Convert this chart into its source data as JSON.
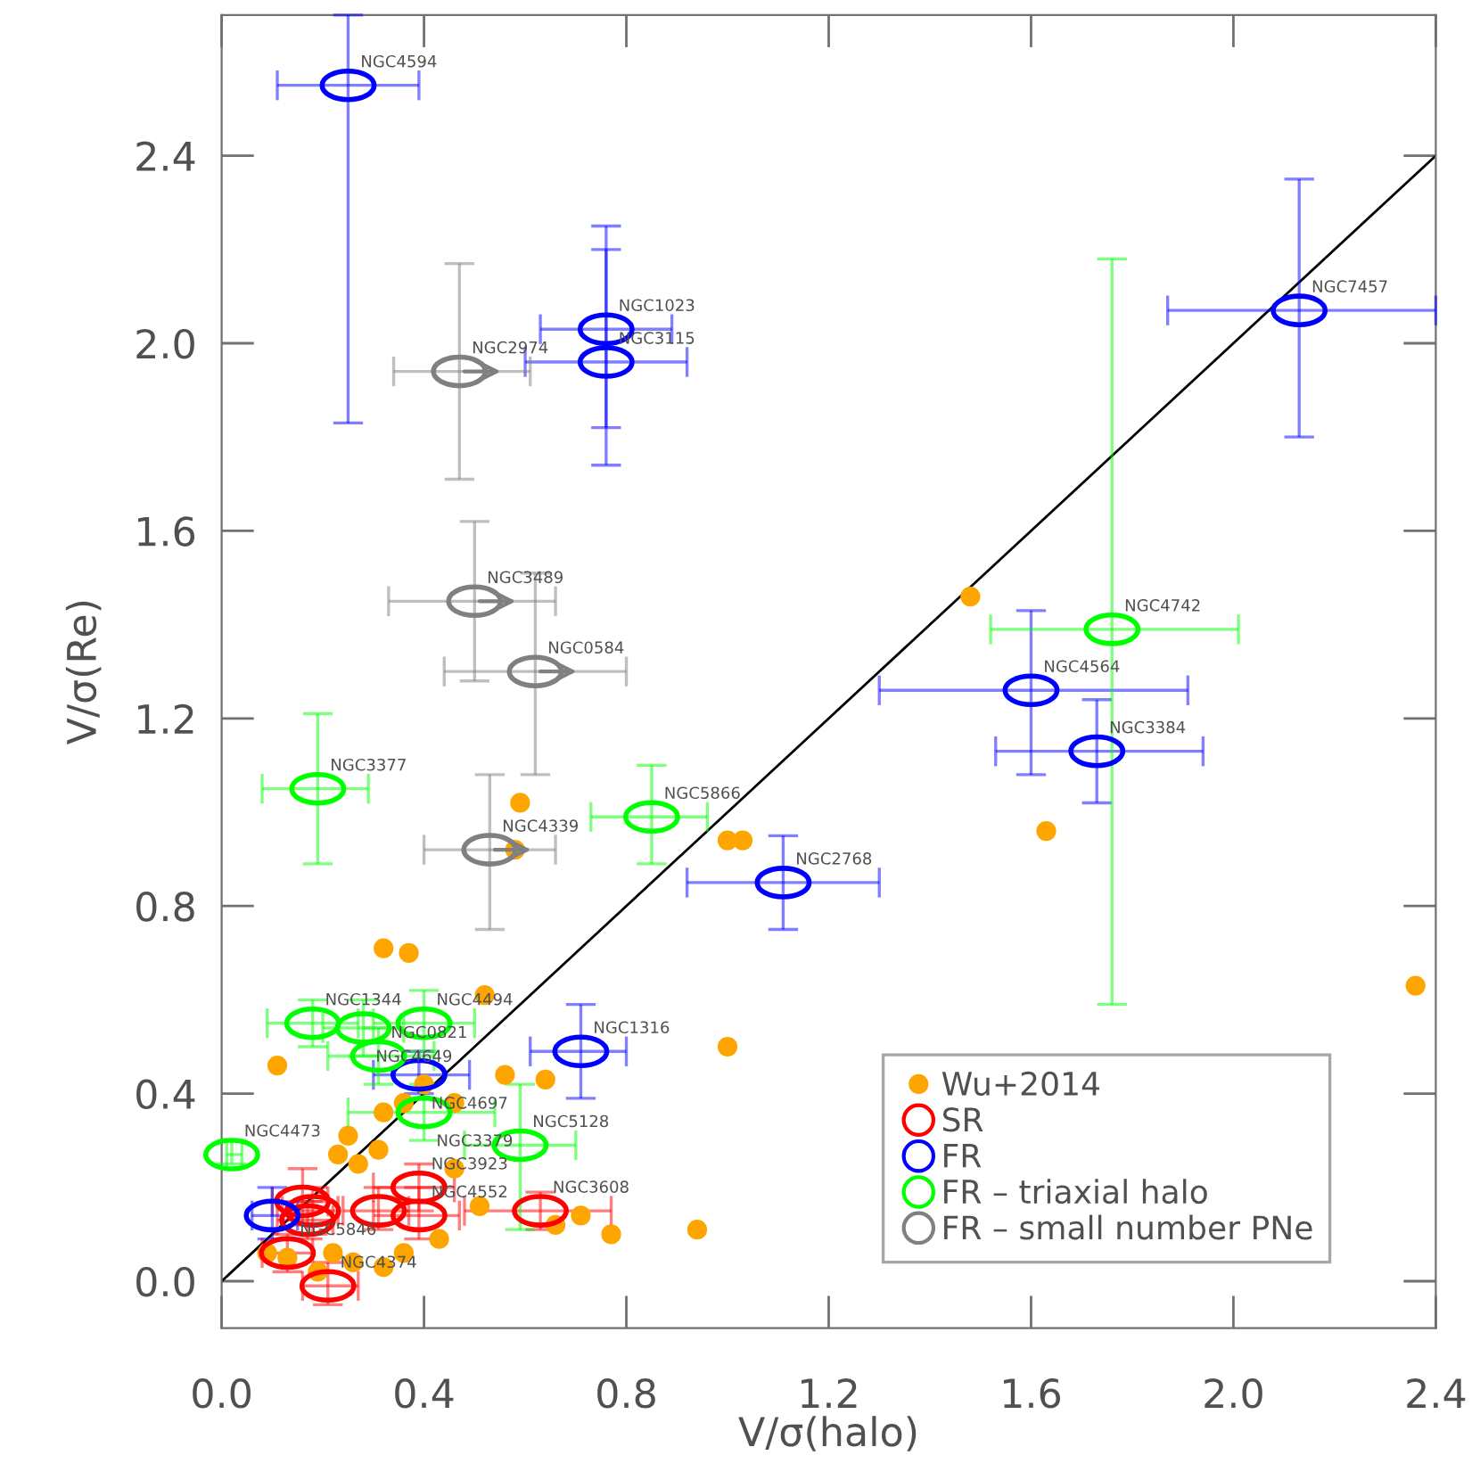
{
  "chart_data": {
    "type": "scatter",
    "xlabel": "V/σ(halo)",
    "ylabel": "V/σ(Re)",
    "xlim": [
      0,
      2.4
    ],
    "ylim": [
      -0.1,
      2.7
    ],
    "xticks": [
      {
        "value": 0,
        "label": "0.0"
      },
      0.4,
      0.8,
      1.2,
      1.6,
      {
        "value": 2,
        "label": "2.0"
      },
      2.4
    ],
    "yticks": [
      {
        "value": 0,
        "label": "0.0"
      },
      0.4,
      0.8,
      1.2,
      1.6,
      {
        "value": 2,
        "label": "2.0"
      },
      2.4
    ],
    "grid": false,
    "legend": "bottom right",
    "series": [
      {
        "name": "Wu+2014",
        "color": "#ffa500",
        "marker": "circle",
        "x": [
          1.48,
          1.63,
          2.36,
          1.0,
          1.03,
          0.59,
          0.58,
          0.32,
          0.37,
          0.52,
          1.0,
          0.11,
          0.56,
          0.64,
          0.4,
          0.36,
          0.32,
          0.46,
          0.25,
          0.23,
          0.31,
          0.27,
          0.46,
          0.51,
          0.43,
          0.36,
          0.32,
          0.26,
          0.22,
          0.19,
          0.09,
          0.13,
          0.66,
          0.71,
          0.77,
          0.94
        ],
        "values": [
          1.46,
          0.96,
          0.63,
          0.94,
          0.94,
          1.02,
          0.92,
          0.71,
          0.7,
          0.61,
          0.5,
          0.46,
          0.44,
          0.43,
          0.42,
          0.38,
          0.36,
          0.38,
          0.31,
          0.27,
          0.28,
          0.25,
          0.24,
          0.16,
          0.09,
          0.06,
          0.03,
          0.04,
          0.06,
          0.02,
          0.06,
          0.05,
          0.12,
          0.14,
          0.1,
          0.11
        ]
      },
      {
        "name": "SR",
        "color": "#ff0000",
        "marker": "circle",
        "x": [
          0.21,
          0.13,
          0.63,
          0.39,
          0.39,
          0.31,
          0.16,
          0.17,
          0.18
        ],
        "values": [
          -0.01,
          0.06,
          0.15,
          0.2,
          0.14,
          0.15,
          0.17,
          0.13,
          0.15
        ],
        "xerrors": [
          [
            0.16,
            0.27
          ],
          [
            0.08,
            0.18
          ],
          [
            0.48,
            0.77
          ],
          [
            0.3,
            0.46
          ],
          [
            0.3,
            0.47
          ],
          [
            0.24,
            0.37
          ],
          [
            0.1,
            0.21
          ],
          [
            0.11,
            0.22
          ],
          [
            0.12,
            0.23
          ]
        ],
        "errors": [
          [
            -0.05,
            0.04
          ],
          [
            0.02,
            0.1
          ],
          [
            0.11,
            0.19
          ],
          [
            0.15,
            0.25
          ],
          [
            0.09,
            0.2
          ],
          [
            0.11,
            0.2
          ],
          [
            0.12,
            0.24
          ],
          [
            0.09,
            0.17
          ],
          [
            0.1,
            0.2
          ]
        ]
      },
      {
        "name": "FR",
        "color": "#0000ff",
        "marker": "circle",
        "x": [
          0.25,
          0.76,
          0.76,
          2.13,
          1.6,
          1.73,
          1.11,
          0.71,
          0.39,
          0.1
        ],
        "values": [
          2.55,
          2.03,
          1.96,
          2.07,
          1.26,
          1.13,
          0.85,
          0.49,
          0.44,
          0.14
        ],
        "xerrors": [
          [
            0.11,
            0.39
          ],
          [
            0.63,
            0.89
          ],
          [
            0.6,
            0.92
          ],
          [
            1.87,
            2.4
          ],
          [
            1.3,
            1.91
          ],
          [
            1.53,
            1.94
          ],
          [
            0.92,
            1.3
          ],
          [
            0.61,
            0.8
          ],
          [
            0.3,
            0.49
          ],
          [
            0.06,
            0.15
          ]
        ],
        "errors": [
          [
            1.83,
            2.7
          ],
          [
            1.82,
            2.25
          ],
          [
            1.74,
            2.2
          ],
          [
            1.8,
            2.35
          ],
          [
            1.08,
            1.43
          ],
          [
            1.02,
            1.24
          ],
          [
            0.75,
            0.95
          ],
          [
            0.39,
            0.59
          ],
          [
            0.4,
            0.49
          ],
          [
            0.09,
            0.2
          ]
        ]
      },
      {
        "name": "FR – triaxial halo",
        "color": "#00ff00",
        "marker": "circle",
        "x": [
          1.76,
          0.85,
          0.19,
          0.18,
          0.28,
          0.4,
          0.31,
          0.4,
          0.59,
          0.02
        ],
        "values": [
          1.39,
          0.99,
          1.05,
          0.55,
          0.54,
          0.55,
          0.48,
          0.36,
          0.29,
          0.27
        ],
        "xerrors": [
          [
            1.52,
            2.01
          ],
          [
            0.73,
            0.96
          ],
          [
            0.08,
            0.29
          ],
          [
            0.09,
            0.27
          ],
          [
            0.2,
            0.36
          ],
          [
            0.3,
            0.5
          ],
          [
            0.21,
            0.42
          ],
          [
            0.25,
            0.54
          ],
          [
            0.48,
            0.7
          ],
          [
            0.01,
            0.04
          ]
        ],
        "errors": [
          [
            0.59,
            2.18
          ],
          [
            0.89,
            1.1
          ],
          [
            0.89,
            1.21
          ],
          [
            0.5,
            0.6
          ],
          [
            0.48,
            0.6
          ],
          [
            0.49,
            0.62
          ],
          [
            0.42,
            0.54
          ],
          [
            0.3,
            0.42
          ],
          [
            0.11,
            0.42
          ],
          [
            0.25,
            0.3
          ]
        ]
      },
      {
        "name": "FR – small number PNe",
        "color": "#808080",
        "marker": "circle",
        "x": [
          0.47,
          0.5,
          0.62,
          0.53
        ],
        "values": [
          1.94,
          1.45,
          1.3,
          0.92
        ],
        "xerrors": [
          [
            0.34,
            0.61
          ],
          [
            0.33,
            0.66
          ],
          [
            0.44,
            0.8
          ],
          [
            0.4,
            0.66
          ]
        ],
        "errors": [
          [
            1.71,
            2.17
          ],
          [
            1.28,
            1.62
          ],
          [
            1.08,
            1.51
          ],
          [
            0.75,
            1.08
          ]
        ]
      },
      {
        "type": "line",
        "color": "#000000",
        "x": [
          0,
          2.4
        ],
        "values": [
          0,
          2.4
        ]
      }
    ],
    "annotations": [
      {
        "text": "NGC4594",
        "x": 0.25,
        "y": 2.55
      },
      {
        "text": "NGC1023",
        "x": 0.76,
        "y": 2.03
      },
      {
        "text": "NGC3115",
        "x": 0.76,
        "y": 1.96
      },
      {
        "text": "NGC7457",
        "x": 2.13,
        "y": 2.07
      },
      {
        "text": "NGC4564",
        "x": 1.6,
        "y": 1.26
      },
      {
        "text": "NGC3384",
        "x": 1.73,
        "y": 1.13
      },
      {
        "text": "NGC2768",
        "x": 1.11,
        "y": 0.85
      },
      {
        "text": "NGC1316",
        "x": 0.71,
        "y": 0.49
      },
      {
        "text": "NGC4742",
        "x": 1.76,
        "y": 1.39
      },
      {
        "text": "NGC5866",
        "x": 0.85,
        "y": 0.99
      },
      {
        "text": "NGC3377",
        "x": 0.19,
        "y": 1.05
      },
      {
        "text": "NGC2974",
        "x": 0.47,
        "y": 1.94
      },
      {
        "text": "NGC3489",
        "x": 0.5,
        "y": 1.45
      },
      {
        "text": "NGC0584",
        "x": 0.62,
        "y": 1.3
      },
      {
        "text": "NGC4339",
        "x": 0.53,
        "y": 0.92
      },
      {
        "text": "NGC1344",
        "x": 0.18,
        "y": 0.55
      },
      {
        "text": "NGC4494",
        "x": 0.4,
        "y": 0.55
      },
      {
        "text": "NGC4649",
        "x": 0.28,
        "y": 0.54
      },
      {
        "text": "NGC0821",
        "x": 0.31,
        "y": 0.48
      },
      {
        "text": "NGC4697",
        "x": 0.39,
        "y": 0.44
      },
      {
        "text": "NGC3379",
        "x": 0.4,
        "y": 0.36
      },
      {
        "text": "NGC5128",
        "x": 0.59,
        "y": 0.29
      },
      {
        "text": "NGC4473",
        "x": 0.02,
        "y": 0.27
      },
      {
        "text": "NGC3923",
        "x": 0.39,
        "y": 0.2
      },
      {
        "text": "NGC4552",
        "x": 0.39,
        "y": 0.14
      },
      {
        "text": "NGC3608",
        "x": 0.63,
        "y": 0.15
      },
      {
        "text": "NGC5846",
        "x": 0.13,
        "y": 0.06
      },
      {
        "text": "NGC4374",
        "x": 0.21,
        "y": -0.01
      }
    ]
  }
}
